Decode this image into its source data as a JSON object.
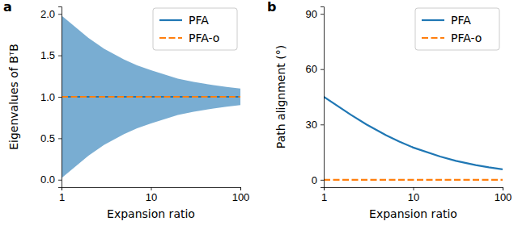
{
  "chart_data": [
    {
      "type": "line",
      "title": "a",
      "xlabel": "Expansion ratio",
      "ylabel": "Eigenvalues of BᵀB",
      "log": "x",
      "legend": "upper right",
      "x": [
        1,
        2,
        3,
        5,
        7,
        10,
        20,
        30,
        50,
        70,
        100
      ],
      "band": {
        "color": "#1f77b4",
        "lower": [
          0.02,
          0.29,
          0.42,
          0.55,
          0.62,
          0.68,
          0.78,
          0.82,
          0.86,
          0.88,
          0.9
        ],
        "upper": [
          1.98,
          1.71,
          1.58,
          1.45,
          1.38,
          1.32,
          1.22,
          1.18,
          1.14,
          1.12,
          1.1
        ]
      },
      "series": [
        {
          "name": "PFA",
          "color": "#1f77b4",
          "line_style": "solid",
          "values": [
            1,
            1,
            1,
            1,
            1,
            1,
            1,
            1,
            1,
            1,
            1
          ]
        },
        {
          "name": "PFA-o",
          "color": "#ff7f0e",
          "line_style": "dashed",
          "values": [
            1,
            1,
            1,
            1,
            1,
            1,
            1,
            1,
            1,
            1,
            1
          ]
        }
      ],
      "xlim": [
        1,
        100
      ],
      "xticks": [
        1,
        10,
        100
      ],
      "ylim": [
        -0.09,
        2.09
      ],
      "yticks": [
        {
          "value": 0,
          "label": "0.0"
        },
        {
          "value": 0.5,
          "label": "0.5"
        },
        {
          "value": 1,
          "label": "1.0"
        },
        {
          "value": 1.5,
          "label": "1.5"
        },
        {
          "value": 2,
          "label": "2.0"
        }
      ]
    },
    {
      "type": "line",
      "title": "b",
      "xlabel": "Expansion ratio",
      "ylabel": "Path alignment (°)",
      "log": "x",
      "legend": "upper right",
      "x": [
        1,
        2,
        3,
        5,
        7,
        10,
        20,
        30,
        50,
        70,
        100
      ],
      "series": [
        {
          "name": "PFA",
          "color": "#1f77b4",
          "line_style": "solid",
          "values": [
            45,
            35.3,
            30,
            24.1,
            20.7,
            17.5,
            12.6,
            10.3,
            8,
            6.8,
            5.7
          ]
        },
        {
          "name": "PFA-o",
          "color": "#ff7f0e",
          "line_style": "dashed",
          "values": [
            0,
            0,
            0,
            0,
            0,
            0,
            0,
            0,
            0,
            0,
            0
          ]
        }
      ],
      "xlim": [
        1,
        100
      ],
      "xticks": [
        1,
        10,
        100
      ],
      "ylim": [
        -4,
        94
      ],
      "yticks": [
        0,
        30,
        60,
        90
      ]
    }
  ]
}
